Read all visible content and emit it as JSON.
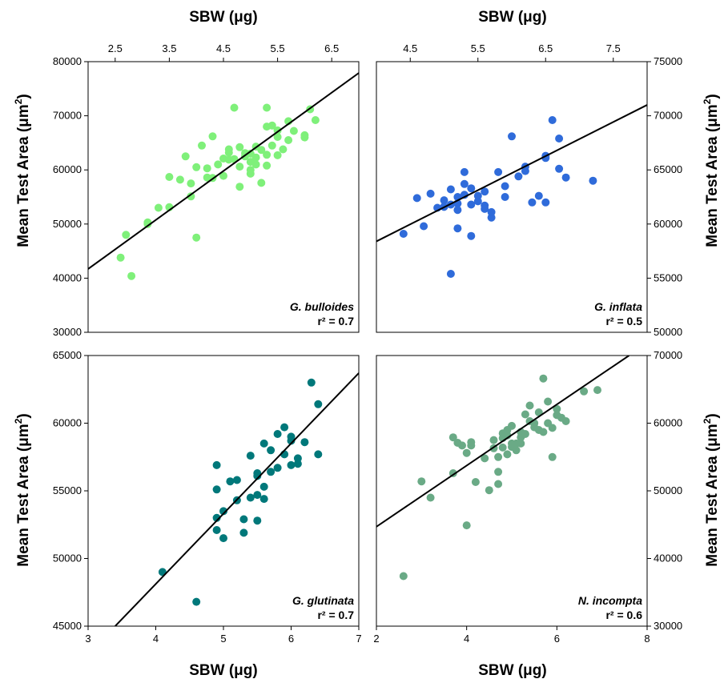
{
  "chart_data": [
    {
      "type": "scatter",
      "species": "G. bulloides",
      "r2_text": "r² = 0.7",
      "color": "#7ff07a",
      "xlim": [
        2.0,
        7.0
      ],
      "xticks": [
        "2.5",
        "3.5",
        "4.5",
        "5.5",
        "6.5"
      ],
      "xtick_values": [
        2.5,
        3.5,
        4.5,
        5.5,
        6.5
      ],
      "ylim": [
        30000,
        80000
      ],
      "yticks": [
        "30000",
        "40000",
        "50000",
        "60000",
        "70000",
        "80000"
      ],
      "ytick_values": [
        30000,
        40000,
        50000,
        60000,
        70000,
        80000
      ],
      "fit": [
        [
          2.0,
          41700
        ],
        [
          7.0,
          77900
        ]
      ],
      "points": [
        [
          2.6,
          43800
        ],
        [
          2.7,
          48000
        ],
        [
          2.8,
          40400
        ],
        [
          3.1,
          50000
        ],
        [
          3.1,
          50300
        ],
        [
          3.3,
          53000
        ],
        [
          3.5,
          53100
        ],
        [
          3.5,
          58700
        ],
        [
          3.7,
          58200
        ],
        [
          3.8,
          62500
        ],
        [
          3.9,
          57500
        ],
        [
          3.9,
          55100
        ],
        [
          4.0,
          60500
        ],
        [
          4.1,
          64500
        ],
        [
          4.2,
          58600
        ],
        [
          4.2,
          60300
        ],
        [
          4.3,
          66200
        ],
        [
          4.3,
          58500
        ],
        [
          4.5,
          58900
        ],
        [
          4.5,
          62100
        ],
        [
          4.6,
          61900
        ],
        [
          4.6,
          63200
        ],
        [
          4.7,
          71500
        ],
        [
          4.7,
          62000
        ],
        [
          4.8,
          64200
        ],
        [
          4.8,
          60600
        ],
        [
          4.9,
          62500
        ],
        [
          5.0,
          61500
        ],
        [
          5.0,
          60000
        ],
        [
          5.0,
          63000
        ],
        [
          5.1,
          64300
        ],
        [
          5.1,
          62300
        ],
        [
          5.2,
          63700
        ],
        [
          5.3,
          68000
        ],
        [
          5.3,
          71500
        ],
        [
          5.3,
          60800
        ],
        [
          5.4,
          64500
        ],
        [
          5.4,
          68200
        ],
        [
          5.5,
          66100
        ],
        [
          5.5,
          62700
        ],
        [
          5.6,
          63800
        ],
        [
          5.7,
          69000
        ],
        [
          5.7,
          65500
        ],
        [
          5.8,
          67200
        ],
        [
          6.0,
          66400
        ],
        [
          6.0,
          66000
        ],
        [
          6.1,
          71200
        ],
        [
          6.2,
          69200
        ],
        [
          4.0,
          47500
        ],
        [
          4.8,
          56900
        ],
        [
          5.0,
          59300
        ],
        [
          5.2,
          57600
        ],
        [
          4.6,
          63800
        ],
        [
          5.5,
          67300
        ],
        [
          4.9,
          63100
        ],
        [
          5.1,
          61000
        ],
        [
          5.3,
          62800
        ],
        [
          4.4,
          61000
        ]
      ]
    },
    {
      "type": "scatter",
      "species": "G. inflata",
      "r2_text": "r² = 0.5",
      "color": "#2f6bda",
      "xlim": [
        4.0,
        8.0
      ],
      "xticks": [
        "4.5",
        "5.5",
        "6.5",
        "7.5"
      ],
      "xtick_values": [
        4.5,
        5.5,
        6.5,
        7.5
      ],
      "ylim": [
        50000,
        75000
      ],
      "yticks": [
        "50000",
        "55000",
        "60000",
        "65000",
        "70000",
        "75000"
      ],
      "ytick_values": [
        50000,
        75000,
        55000,
        60000,
        65000,
        70000
      ],
      "fit": [
        [
          4.0,
          58400
        ],
        [
          8.0,
          71000
        ]
      ],
      "points": [
        [
          4.4,
          59100
        ],
        [
          4.6,
          62400
        ],
        [
          4.7,
          59800
        ],
        [
          4.8,
          62800
        ],
        [
          4.9,
          61500
        ],
        [
          5.0,
          61600
        ],
        [
          5.0,
          62200
        ],
        [
          5.0,
          61600
        ],
        [
          5.1,
          61800
        ],
        [
          5.1,
          63200
        ],
        [
          5.2,
          61300
        ],
        [
          5.2,
          59600
        ],
        [
          5.2,
          62500
        ],
        [
          5.3,
          62700
        ],
        [
          5.3,
          63700
        ],
        [
          5.3,
          64800
        ],
        [
          5.4,
          61800
        ],
        [
          5.4,
          63300
        ],
        [
          5.5,
          62100
        ],
        [
          5.5,
          62600
        ],
        [
          5.6,
          61700
        ],
        [
          5.6,
          61400
        ],
        [
          5.7,
          60600
        ],
        [
          5.7,
          61100
        ],
        [
          5.8,
          64800
        ],
        [
          5.9,
          63500
        ],
        [
          6.0,
          68100
        ],
        [
          6.1,
          64400
        ],
        [
          6.2,
          65300
        ],
        [
          6.2,
          64900
        ],
        [
          6.3,
          62000
        ],
        [
          6.4,
          62600
        ],
        [
          6.5,
          62000
        ],
        [
          6.5,
          66100
        ],
        [
          6.5,
          66300
        ],
        [
          6.6,
          69600
        ],
        [
          6.7,
          67900
        ],
        [
          6.7,
          65100
        ],
        [
          6.8,
          64300
        ],
        [
          7.2,
          64000
        ],
        [
          5.1,
          55400
        ],
        [
          5.4,
          58900
        ],
        [
          5.6,
          63000
        ],
        [
          5.9,
          62500
        ],
        [
          5.2,
          61900
        ]
      ]
    },
    {
      "type": "scatter",
      "species": "G. glutinata",
      "r2_text": "r² = 0.7",
      "color": "#00787a",
      "xlim": [
        3.0,
        7.0
      ],
      "xticks": [
        "3",
        "4",
        "5",
        "6",
        "7"
      ],
      "xtick_values": [
        3,
        4,
        5,
        6,
        7
      ],
      "ylim": [
        45000,
        65000
      ],
      "yticks": [
        "45000",
        "50000",
        "55000",
        "60000",
        "65000"
      ],
      "ytick_values": [
        45000,
        50000,
        55000,
        60000,
        65000
      ],
      "fit": [
        [
          3.4,
          45000
        ],
        [
          7.0,
          63700
        ]
      ],
      "points": [
        [
          4.1,
          49000
        ],
        [
          4.6,
          46800
        ],
        [
          4.9,
          55100
        ],
        [
          4.9,
          53000
        ],
        [
          4.9,
          52100
        ],
        [
          5.0,
          51500
        ],
        [
          5.0,
          53500
        ],
        [
          5.1,
          55700
        ],
        [
          5.2,
          55800
        ],
        [
          5.3,
          52900
        ],
        [
          5.3,
          51900
        ],
        [
          5.4,
          54500
        ],
        [
          5.4,
          57600
        ],
        [
          5.5,
          56100
        ],
        [
          5.5,
          52800
        ],
        [
          5.5,
          54700
        ],
        [
          5.5,
          56300
        ],
        [
          5.6,
          55300
        ],
        [
          5.6,
          58500
        ],
        [
          5.7,
          58000
        ],
        [
          5.7,
          56400
        ],
        [
          5.8,
          56700
        ],
        [
          5.9,
          57700
        ],
        [
          5.9,
          59700
        ],
        [
          6.0,
          59000
        ],
        [
          6.0,
          58700
        ],
        [
          6.0,
          56900
        ],
        [
          6.1,
          57000
        ],
        [
          6.1,
          57400
        ],
        [
          6.2,
          58600
        ],
        [
          6.3,
          63000
        ],
        [
          6.4,
          57700
        ],
        [
          6.4,
          61400
        ],
        [
          5.2,
          54300
        ],
        [
          5.8,
          59200
        ],
        [
          4.9,
          56900
        ],
        [
          5.6,
          54400
        ]
      ]
    },
    {
      "type": "scatter",
      "species": "N. incompta",
      "r2_text": "r² = 0.6",
      "color": "#6aaa86",
      "xlim": [
        2.0,
        8.0
      ],
      "xticks": [
        "2",
        "4",
        "6",
        "8"
      ],
      "xtick_values": [
        2,
        4,
        6,
        8
      ],
      "ylim": [
        30000,
        70000
      ],
      "yticks": [
        "30000",
        "40000",
        "50000",
        "60000",
        "70000"
      ],
      "ytick_values": [
        30000,
        40000,
        50000,
        60000,
        70000
      ],
      "fit": [
        [
          2.0,
          44700
        ],
        [
          7.6,
          70000
        ]
      ],
      "points": [
        [
          2.6,
          37400
        ],
        [
          3.0,
          51400
        ],
        [
          3.2,
          49000
        ],
        [
          3.7,
          52600
        ],
        [
          3.7,
          57900
        ],
        [
          3.8,
          57100
        ],
        [
          3.9,
          56700
        ],
        [
          4.0,
          55600
        ],
        [
          4.0,
          44900
        ],
        [
          4.1,
          57200
        ],
        [
          4.1,
          56700
        ],
        [
          4.2,
          51300
        ],
        [
          4.4,
          54800
        ],
        [
          4.5,
          50100
        ],
        [
          4.6,
          56300
        ],
        [
          4.7,
          52800
        ],
        [
          4.7,
          55000
        ],
        [
          4.7,
          51000
        ],
        [
          4.8,
          57800
        ],
        [
          4.8,
          56400
        ],
        [
          4.9,
          55400
        ],
        [
          4.9,
          58200
        ],
        [
          5.0,
          56500
        ],
        [
          5.0,
          59600
        ],
        [
          5.1,
          57000
        ],
        [
          5.1,
          56000
        ],
        [
          5.2,
          58700
        ],
        [
          5.2,
          57900
        ],
        [
          5.3,
          61300
        ],
        [
          5.3,
          58400
        ],
        [
          5.4,
          60300
        ],
        [
          5.4,
          62600
        ],
        [
          5.5,
          59400
        ],
        [
          5.6,
          59000
        ],
        [
          5.6,
          61600
        ],
        [
          5.7,
          66600
        ],
        [
          5.7,
          58700
        ],
        [
          5.8,
          60000
        ],
        [
          5.8,
          63200
        ],
        [
          5.9,
          55000
        ],
        [
          5.9,
          59300
        ],
        [
          6.0,
          61200
        ],
        [
          6.0,
          62100
        ],
        [
          6.1,
          60800
        ],
        [
          6.2,
          60300
        ],
        [
          6.6,
          64700
        ],
        [
          6.9,
          64900
        ],
        [
          5.0,
          57000
        ],
        [
          4.9,
          59000
        ],
        [
          5.5,
          60000
        ],
        [
          4.8,
          58500
        ],
        [
          5.2,
          57000
        ],
        [
          4.6,
          57500
        ]
      ]
    }
  ],
  "labels": {
    "x_axis_title_top": "SBW (μg)",
    "x_axis_title_bottom": "SBW (μg)",
    "y_axis_title_prefix": "Mean Test Area (",
    "y_axis_unit": "μm",
    "y_axis_exponent": "2",
    "y_axis_suffix": ")"
  }
}
